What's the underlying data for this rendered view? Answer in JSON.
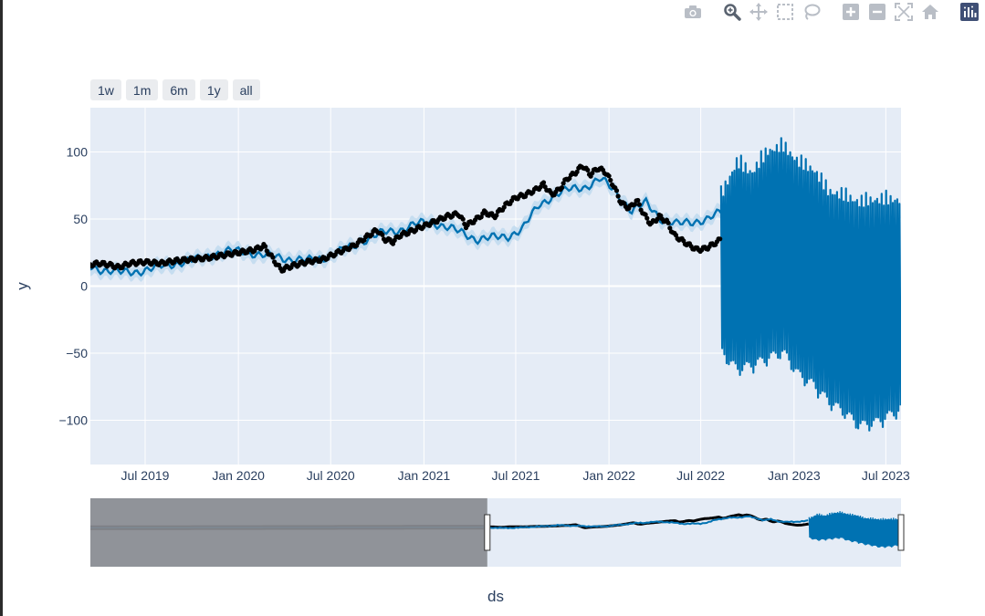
{
  "modebar": {
    "buttons": [
      {
        "name": "camera-icon"
      },
      {
        "name": "zoom-icon"
      },
      {
        "name": "pan-icon"
      },
      {
        "name": "box-select-icon"
      },
      {
        "name": "lasso-select-icon"
      },
      {
        "name": "zoom-in-icon"
      },
      {
        "name": "zoom-out-icon"
      },
      {
        "name": "autoscale-icon"
      },
      {
        "name": "reset-axes-icon"
      },
      {
        "name": "plotly-logo-icon"
      }
    ]
  },
  "range_buttons": [
    {
      "label": "1w"
    },
    {
      "label": "1m"
    },
    {
      "label": "6m"
    },
    {
      "label": "1y"
    },
    {
      "label": "all"
    }
  ],
  "colors": {
    "plot_bg": "#e5ecf6",
    "grid": "#ffffff",
    "actual": "#000000",
    "forecast": "#0072b2",
    "band": "#c2dcf0",
    "slider_shade": "#898b90"
  },
  "chart_data": {
    "type": "line",
    "xlabel": "ds",
    "ylabel": "y",
    "x_range": [
      "2019-03-15",
      "2023-07-31"
    ],
    "ylim": [
      -133,
      133
    ],
    "y_ticks": [
      {
        "value": 100,
        "label": "100"
      },
      {
        "value": 50,
        "label": "50"
      },
      {
        "value": 0,
        "label": "0"
      },
      {
        "value": -50,
        "label": "−50"
      },
      {
        "value": -100,
        "label": "−100"
      }
    ],
    "x_ticks": [
      {
        "date": "2019-07-01",
        "label": "Jul 2019"
      },
      {
        "date": "2020-01-01",
        "label": "Jan 2020"
      },
      {
        "date": "2020-07-01",
        "label": "Jul 2020"
      },
      {
        "date": "2021-01-01",
        "label": "Jan 2021"
      },
      {
        "date": "2021-07-01",
        "label": "Jul 2021"
      },
      {
        "date": "2022-01-01",
        "label": "Jan 2022"
      },
      {
        "date": "2022-07-01",
        "label": "Jul 2022"
      },
      {
        "date": "2023-01-01",
        "label": "Jan 2023"
      },
      {
        "date": "2023-07-01",
        "label": "Jul 2023"
      }
    ],
    "grid": true,
    "series": [
      {
        "kind": "actual",
        "style": "markers",
        "points": [
          [
            "2019-03-15",
            16
          ],
          [
            "2019-04-01",
            17
          ],
          [
            "2019-04-20",
            16
          ],
          [
            "2019-05-10",
            14
          ],
          [
            "2019-06-01",
            17
          ],
          [
            "2019-07-01",
            18
          ],
          [
            "2019-08-01",
            17
          ],
          [
            "2019-09-01",
            19
          ],
          [
            "2019-10-01",
            20
          ],
          [
            "2019-11-01",
            21
          ],
          [
            "2019-12-01",
            23
          ],
          [
            "2020-01-01",
            25
          ],
          [
            "2020-02-01",
            27
          ],
          [
            "2020-02-20",
            30
          ],
          [
            "2020-03-10",
            20
          ],
          [
            "2020-03-25",
            12
          ],
          [
            "2020-04-15",
            15
          ],
          [
            "2020-05-15",
            18
          ],
          [
            "2020-06-15",
            20
          ],
          [
            "2020-07-15",
            25
          ],
          [
            "2020-08-15",
            30
          ],
          [
            "2020-09-15",
            38
          ],
          [
            "2020-10-01",
            42
          ],
          [
            "2020-10-15",
            35
          ],
          [
            "2020-11-01",
            33
          ],
          [
            "2020-11-15",
            38
          ],
          [
            "2020-12-01",
            40
          ],
          [
            "2020-12-20",
            43
          ],
          [
            "2021-01-15",
            47
          ],
          [
            "2021-02-15",
            52
          ],
          [
            "2021-03-10",
            54
          ],
          [
            "2021-03-25",
            45
          ],
          [
            "2021-04-15",
            50
          ],
          [
            "2021-05-01",
            55
          ],
          [
            "2021-05-20",
            52
          ],
          [
            "2021-06-10",
            60
          ],
          [
            "2021-07-01",
            66
          ],
          [
            "2021-07-20",
            68
          ],
          [
            "2021-08-10",
            72
          ],
          [
            "2021-08-25",
            76
          ],
          [
            "2021-09-10",
            68
          ],
          [
            "2021-09-25",
            72
          ],
          [
            "2021-10-10",
            80
          ],
          [
            "2021-10-25",
            84
          ],
          [
            "2021-11-10",
            90
          ],
          [
            "2021-11-25",
            83
          ],
          [
            "2021-12-10",
            88
          ],
          [
            "2021-12-25",
            85
          ],
          [
            "2022-01-10",
            75
          ],
          [
            "2022-01-25",
            62
          ],
          [
            "2022-02-10",
            58
          ],
          [
            "2022-02-25",
            64
          ],
          [
            "2022-03-10",
            54
          ],
          [
            "2022-03-25",
            46
          ],
          [
            "2022-04-10",
            52
          ],
          [
            "2022-04-25",
            48
          ],
          [
            "2022-05-10",
            38
          ],
          [
            "2022-05-25",
            34
          ],
          [
            "2022-06-10",
            30
          ],
          [
            "2022-06-25",
            27
          ],
          [
            "2022-07-10",
            28
          ],
          [
            "2022-07-25",
            31
          ],
          [
            "2022-08-10",
            35
          ]
        ]
      },
      {
        "kind": "forecast",
        "style": "line",
        "points": [
          [
            "2019-03-15",
            14
          ],
          [
            "2019-04-15",
            12
          ],
          [
            "2019-05-15",
            10
          ],
          [
            "2019-06-15",
            11
          ],
          [
            "2019-07-15",
            13
          ],
          [
            "2019-08-15",
            16
          ],
          [
            "2019-09-15",
            18
          ],
          [
            "2019-10-15",
            20
          ],
          [
            "2019-11-15",
            24
          ],
          [
            "2019-12-15",
            26
          ],
          [
            "2020-01-15",
            26
          ],
          [
            "2020-02-15",
            23
          ],
          [
            "2020-03-15",
            22
          ],
          [
            "2020-04-15",
            20
          ],
          [
            "2020-05-15",
            19
          ],
          [
            "2020-06-15",
            21
          ],
          [
            "2020-07-15",
            25
          ],
          [
            "2020-08-15",
            30
          ],
          [
            "2020-09-15",
            36
          ],
          [
            "2020-10-15",
            40
          ],
          [
            "2020-11-15",
            42
          ],
          [
            "2020-12-15",
            46
          ],
          [
            "2021-01-15",
            48
          ],
          [
            "2021-02-15",
            44
          ],
          [
            "2021-03-15",
            40
          ],
          [
            "2021-04-15",
            35
          ],
          [
            "2021-05-15",
            36
          ],
          [
            "2021-06-15",
            37
          ],
          [
            "2021-07-15",
            43
          ],
          [
            "2021-08-15",
            60
          ],
          [
            "2021-09-15",
            68
          ],
          [
            "2021-10-15",
            72
          ],
          [
            "2021-11-15",
            74
          ],
          [
            "2021-12-15",
            80
          ],
          [
            "2022-01-15",
            70
          ],
          [
            "2022-02-15",
            56
          ],
          [
            "2022-03-15",
            62
          ],
          [
            "2022-04-15",
            50
          ],
          [
            "2022-05-15",
            46
          ],
          [
            "2022-06-15",
            48
          ],
          [
            "2022-07-15",
            50
          ],
          [
            "2022-08-10",
            55
          ]
        ]
      },
      {
        "kind": "forecast_future",
        "style": "oscillating",
        "start": "2022-08-10",
        "end": "2023-07-31",
        "upper_envelope": [
          [
            "2022-08-10",
            75
          ],
          [
            "2022-09-10",
            100
          ],
          [
            "2022-10-10",
            92
          ],
          [
            "2022-11-10",
            108
          ],
          [
            "2022-12-10",
            112
          ],
          [
            "2023-01-10",
            100
          ],
          [
            "2023-02-10",
            94
          ],
          [
            "2023-03-10",
            78
          ],
          [
            "2023-04-10",
            75
          ],
          [
            "2023-05-10",
            70
          ],
          [
            "2023-06-10",
            72
          ],
          [
            "2023-07-31",
            72
          ]
        ],
        "lower_envelope": [
          [
            "2022-08-10",
            -55
          ],
          [
            "2022-09-10",
            -68
          ],
          [
            "2022-10-10",
            -65
          ],
          [
            "2022-11-10",
            -60
          ],
          [
            "2022-12-10",
            -55
          ],
          [
            "2023-01-10",
            -72
          ],
          [
            "2023-02-10",
            -80
          ],
          [
            "2023-03-10",
            -92
          ],
          [
            "2023-04-10",
            -100
          ],
          [
            "2023-05-10",
            -110
          ],
          [
            "2023-06-10",
            -108
          ],
          [
            "2023-07-31",
            -98
          ]
        ]
      }
    ],
    "range_slider": {
      "full_range": [
        "2015-01-01",
        "2023-07-31"
      ],
      "selected_range": [
        "2019-03-15",
        "2023-07-31"
      ]
    }
  }
}
